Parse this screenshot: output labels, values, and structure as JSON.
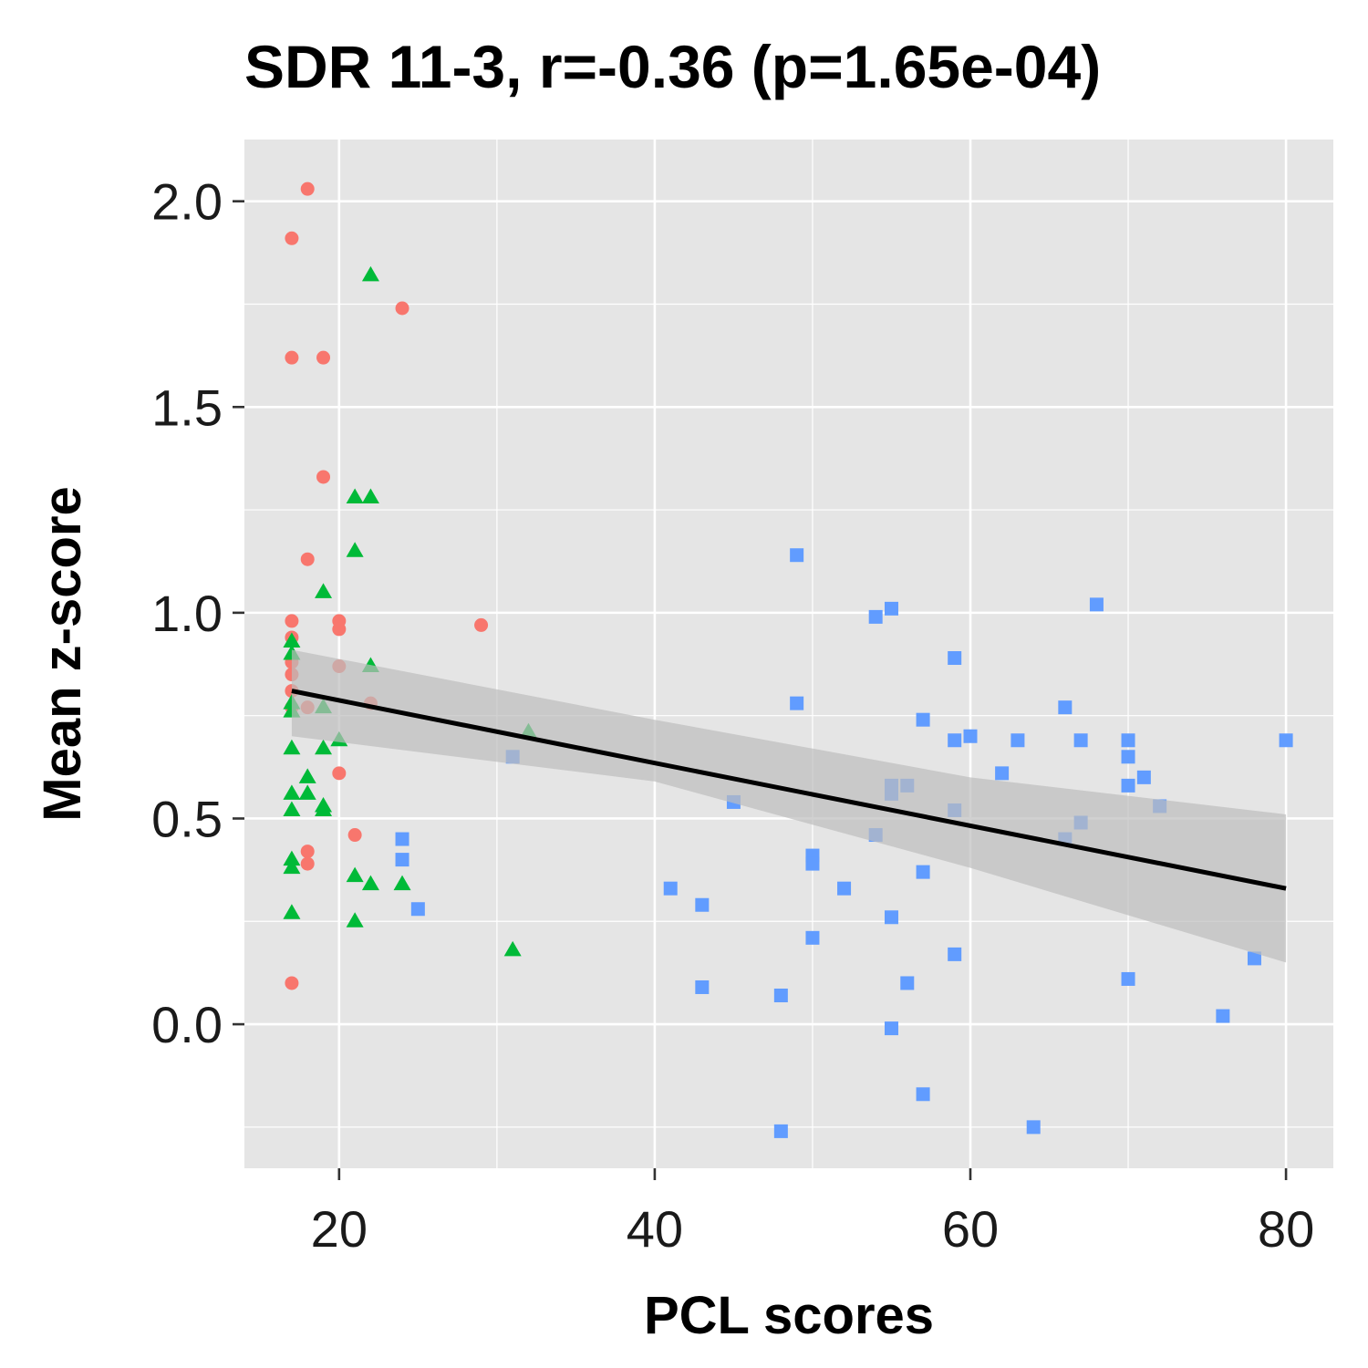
{
  "chart_data": {
    "type": "scatter",
    "title": "SDR 11-3, r=-0.36 (p=1.65e-04)",
    "xlabel": "PCL scores",
    "ylabel": "Mean z-score",
    "xlim": [
      14,
      83
    ],
    "ylim": [
      -0.35,
      2.15
    ],
    "x_ticks": [
      20,
      40,
      60,
      80
    ],
    "y_ticks": [
      0.0,
      0.5,
      1.0,
      1.5,
      2.0
    ],
    "x_tick_labels": [
      "20",
      "40",
      "60",
      "80"
    ],
    "y_tick_labels": [
      "0.0",
      "0.5",
      "1.0",
      "1.5",
      "2.0"
    ],
    "grid": true,
    "legend": "none",
    "series": [
      {
        "color": "#F8766D",
        "marker": "circle",
        "points": [
          [
            18,
            2.03
          ],
          [
            17,
            1.91
          ],
          [
            17,
            1.62
          ],
          [
            19,
            1.62
          ],
          [
            24,
            1.74
          ],
          [
            19,
            1.33
          ],
          [
            18,
            1.13
          ],
          [
            17,
            0.98
          ],
          [
            20,
            0.98
          ],
          [
            20,
            0.96
          ],
          [
            29,
            0.97
          ],
          [
            17,
            0.94
          ],
          [
            17,
            0.88
          ],
          [
            20,
            0.87
          ],
          [
            17,
            0.85
          ],
          [
            17,
            0.81
          ],
          [
            18,
            0.77
          ],
          [
            17,
            0.77
          ],
          [
            22,
            0.78
          ],
          [
            20,
            0.61
          ],
          [
            21,
            0.46
          ],
          [
            18,
            0.42
          ],
          [
            18,
            0.39
          ],
          [
            17,
            0.1
          ]
        ]
      },
      {
        "color": "#00BA38",
        "marker": "triangle",
        "points": [
          [
            22,
            1.82
          ],
          [
            21,
            1.28
          ],
          [
            22,
            1.28
          ],
          [
            21,
            1.15
          ],
          [
            19,
            1.05
          ],
          [
            17,
            0.93
          ],
          [
            17,
            0.9
          ],
          [
            22,
            0.87
          ],
          [
            17,
            0.78
          ],
          [
            19,
            0.77
          ],
          [
            17,
            0.76
          ],
          [
            32,
            0.71
          ],
          [
            20,
            0.69
          ],
          [
            17,
            0.67
          ],
          [
            19,
            0.67
          ],
          [
            18,
            0.6
          ],
          [
            17,
            0.56
          ],
          [
            18,
            0.56
          ],
          [
            19,
            0.53
          ],
          [
            17,
            0.52
          ],
          [
            19,
            0.52
          ],
          [
            17,
            0.4
          ],
          [
            17,
            0.38
          ],
          [
            21,
            0.36
          ],
          [
            22,
            0.34
          ],
          [
            24,
            0.34
          ],
          [
            17,
            0.27
          ],
          [
            21,
            0.25
          ],
          [
            31,
            0.18
          ]
        ]
      },
      {
        "color": "#619CFF",
        "marker": "square",
        "points": [
          [
            49,
            1.14
          ],
          [
            55,
            1.01
          ],
          [
            54,
            0.99
          ],
          [
            68,
            1.02
          ],
          [
            59,
            0.89
          ],
          [
            49,
            0.78
          ],
          [
            66,
            0.77
          ],
          [
            57,
            0.74
          ],
          [
            60,
            0.7
          ],
          [
            59,
            0.69
          ],
          [
            63,
            0.69
          ],
          [
            67,
            0.69
          ],
          [
            70,
            0.69
          ],
          [
            80,
            0.69
          ],
          [
            31,
            0.65
          ],
          [
            70,
            0.65
          ],
          [
            62,
            0.61
          ],
          [
            71,
            0.6
          ],
          [
            55,
            0.58
          ],
          [
            56,
            0.58
          ],
          [
            70,
            0.58
          ],
          [
            55,
            0.56
          ],
          [
            45,
            0.54
          ],
          [
            72,
            0.53
          ],
          [
            59,
            0.52
          ],
          [
            67,
            0.49
          ],
          [
            54,
            0.46
          ],
          [
            66,
            0.45
          ],
          [
            24,
            0.45
          ],
          [
            50,
            0.41
          ],
          [
            24,
            0.4
          ],
          [
            50,
            0.39
          ],
          [
            57,
            0.37
          ],
          [
            41,
            0.33
          ],
          [
            52,
            0.33
          ],
          [
            43,
            0.29
          ],
          [
            25,
            0.28
          ],
          [
            55,
            0.26
          ],
          [
            50,
            0.21
          ],
          [
            59,
            0.17
          ],
          [
            78,
            0.16
          ],
          [
            70,
            0.11
          ],
          [
            56,
            0.1
          ],
          [
            43,
            0.09
          ],
          [
            48,
            0.07
          ],
          [
            76,
            0.02
          ],
          [
            55,
            -0.01
          ],
          [
            57,
            -0.17
          ],
          [
            48,
            -0.26
          ],
          [
            64,
            -0.25
          ]
        ]
      }
    ],
    "regression": {
      "x": [
        17,
        80
      ],
      "y": [
        0.81,
        0.33
      ],
      "color": "#000000",
      "ci_color": "#BEBEBE",
      "ci_upper": [
        [
          17,
          0.91
        ],
        [
          40,
          0.74
        ],
        [
          60,
          0.6
        ],
        [
          80,
          0.51
        ]
      ],
      "ci_lower": [
        [
          17,
          0.7
        ],
        [
          40,
          0.59
        ],
        [
          60,
          0.38
        ],
        [
          80,
          0.15
        ]
      ]
    },
    "panel_color": "#E5E5E5",
    "grid_color": "#FFFFFF"
  }
}
